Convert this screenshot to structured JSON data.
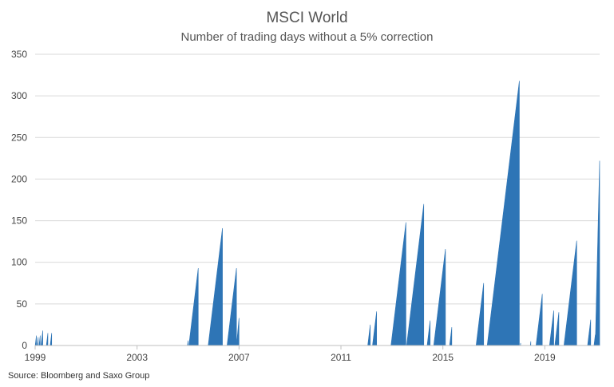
{
  "chart_data": {
    "type": "area",
    "title": "MSCI World",
    "subtitle": "Number of trading days without a 5% correction",
    "source": "Source: Bloomberg and Saxo Group",
    "xlabel": "",
    "ylabel": "",
    "xlim": [
      1999.0,
      2021.15
    ],
    "ylim": [
      0,
      350
    ],
    "yticks": [
      "0",
      "50",
      "100",
      "150",
      "200",
      "250",
      "300",
      "350"
    ],
    "xticks": [
      "1999",
      "2003",
      "2007",
      "2011",
      "2015",
      "2019"
    ],
    "grid": true,
    "legend": "none",
    "color": "#2E75B6",
    "series": [
      {
        "runs": [
          [
            1999.05,
            12
          ],
          [
            1999.12,
            10
          ],
          [
            1999.2,
            12
          ],
          [
            1999.3,
            18
          ],
          [
            1999.5,
            15
          ],
          [
            1999.65,
            15
          ],
          [
            2005.0,
            6
          ],
          [
            2005.4,
            93
          ],
          [
            2006.35,
            141
          ],
          [
            2006.9,
            93
          ],
          [
            2007.0,
            33
          ],
          [
            2012.15,
            25
          ],
          [
            2012.4,
            41
          ],
          [
            2013.55,
            148
          ],
          [
            2014.25,
            170
          ],
          [
            2014.5,
            30
          ],
          [
            2015.1,
            116
          ],
          [
            2015.35,
            22
          ],
          [
            2016.6,
            75
          ],
          [
            2018.0,
            318
          ],
          [
            2018.05,
            3
          ],
          [
            2018.45,
            5
          ],
          [
            2018.9,
            62
          ],
          [
            2019.35,
            42
          ],
          [
            2019.55,
            40
          ],
          [
            2020.25,
            126
          ],
          [
            2020.8,
            31
          ],
          [
            2020.98,
            13
          ],
          [
            2021.15,
            222
          ]
        ]
      }
    ]
  }
}
